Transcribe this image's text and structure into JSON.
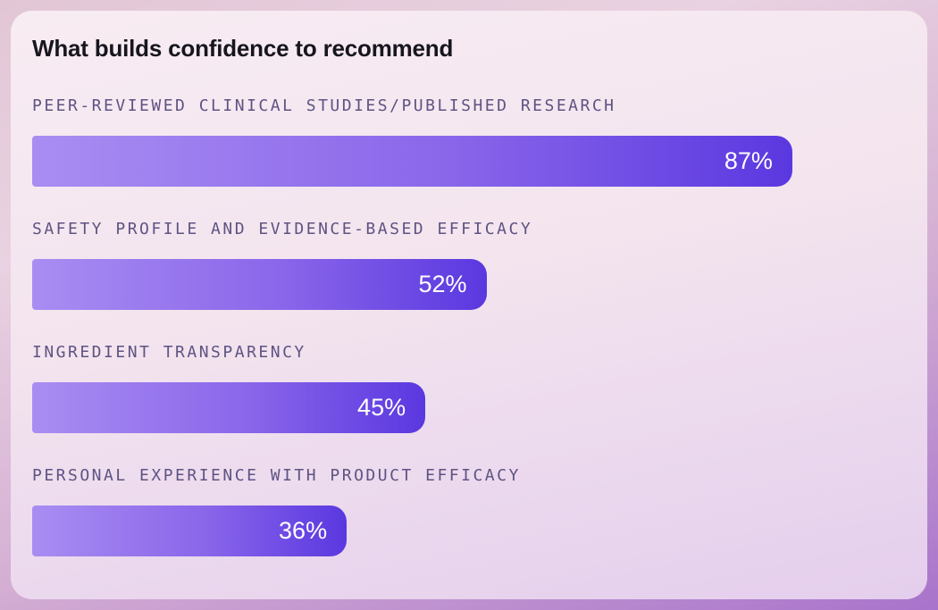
{
  "card": {
    "title": "What builds confidence to recommend"
  },
  "chart_data": {
    "type": "bar",
    "orientation": "horizontal",
    "title": "What builds confidence to recommend",
    "categories": [
      "PEER-REVIEWED CLINICAL STUDIES/PUBLISHED RESEARCH",
      "SAFETY PROFILE AND EVIDENCE-BASED EFFICACY",
      "INGREDIENT TRANSPARENCY",
      "PERSONAL EXPERIENCE WITH PRODUCT EFFICACY"
    ],
    "values": [
      87,
      52,
      45,
      36
    ],
    "value_labels": [
      "87%",
      "52%",
      "45%",
      "36%"
    ],
    "xlim": [
      0,
      100
    ],
    "grid": false,
    "legend": "none",
    "value_label_position": "inside-end",
    "colors": {
      "bar_gradient_start": "#a98df2",
      "bar_gradient_end": "#5a38e0",
      "category_label": "#5e5383",
      "value_label": "#ffffff",
      "title": "#17161f",
      "card_background_top": "#f8ecf3",
      "card_background_bottom": "#e4ceed",
      "page_background_top": "#e2c6d6",
      "page_background_bottom": "#a873cc"
    }
  }
}
